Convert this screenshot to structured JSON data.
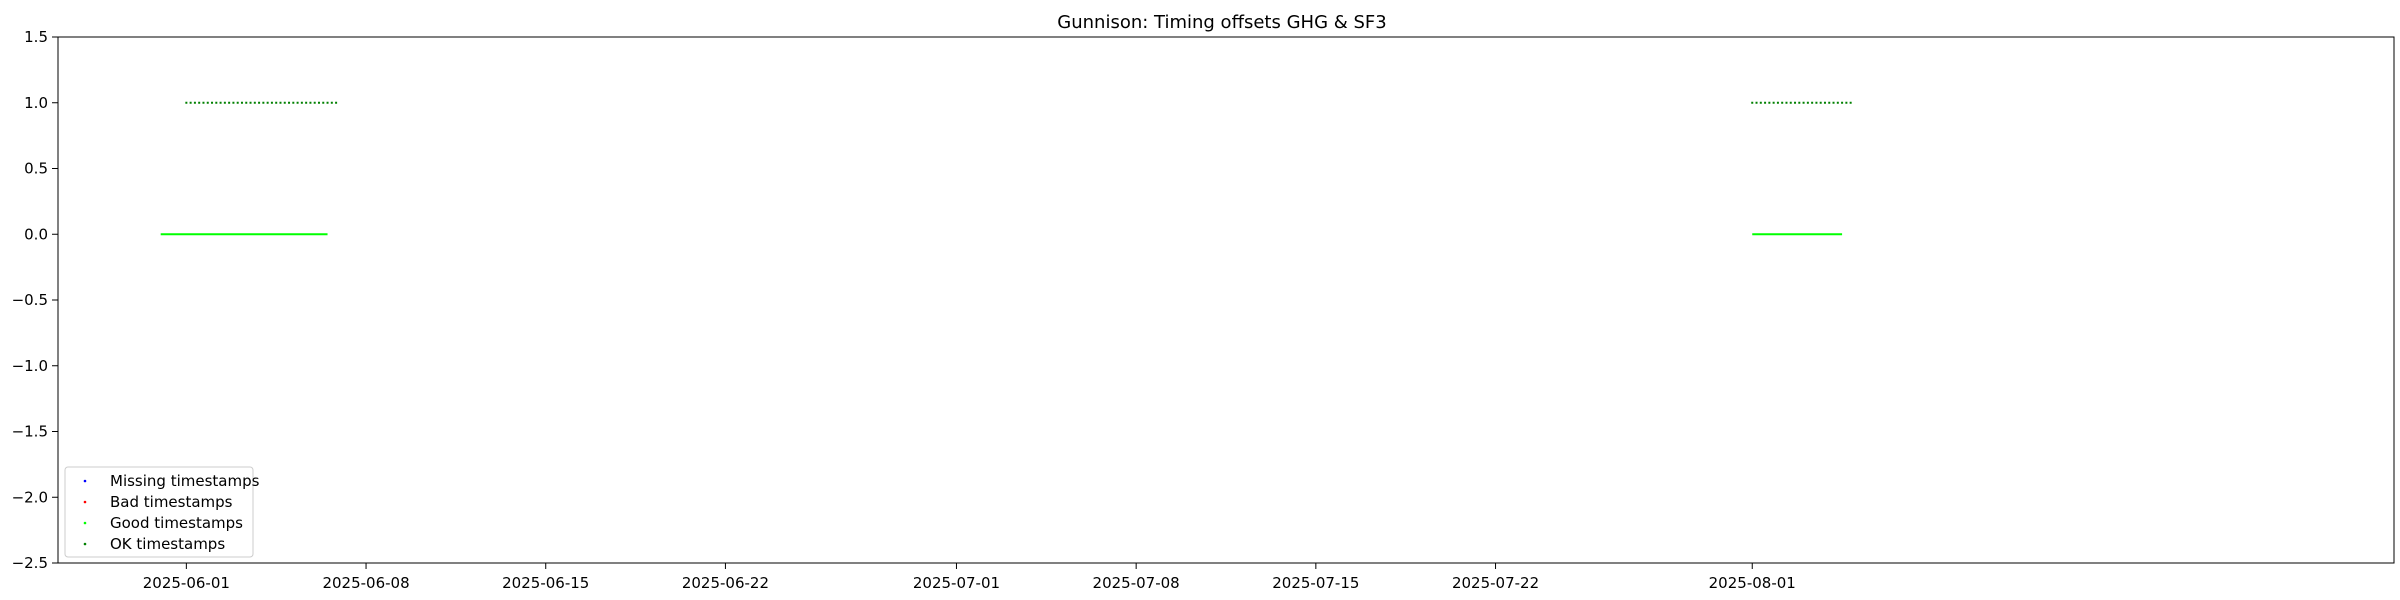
{
  "chart_data": {
    "type": "scatter",
    "title": "Gunnison: Timing offsets GHG & SF3",
    "xlabel": "",
    "ylabel": "",
    "ylim": [
      -2.5,
      1.5
    ],
    "xlim": [
      "2025-05-27",
      "2025-08-26"
    ],
    "yticks": [
      1.5,
      1.0,
      0.5,
      0.0,
      -0.5,
      -1.0,
      -1.5,
      -2.0,
      -2.5
    ],
    "ytick_labels": [
      "1.5",
      "1.0",
      "0.5",
      "0.0",
      "−0.5",
      "−1.0",
      "−1.5",
      "−2.0",
      "−2.5"
    ],
    "xticks": [
      "2025-06-01",
      "2025-06-08",
      "2025-06-15",
      "2025-06-22",
      "2025-07-01",
      "2025-07-08",
      "2025-07-15",
      "2025-07-22",
      "2025-08-01"
    ],
    "grid": false,
    "legend_position": "lower-left",
    "series": [
      {
        "name": "Missing timestamps",
        "color": "#0000ff",
        "points": []
      },
      {
        "name": "Bad timestamps",
        "color": "#ff0000",
        "points": []
      },
      {
        "name": "Good timestamps",
        "color": "#00ff00",
        "segments": [
          {
            "x_start": "2025-05-31",
            "x_end": "2025-06-06",
            "y": 0.0
          },
          {
            "x_start": "2025-08-01",
            "x_end": "2025-08-04",
            "y": 0.0
          }
        ]
      },
      {
        "name": "OK timestamps",
        "color": "#008000",
        "points": [
          {
            "x": "2025-06-01",
            "y": 1.0
          },
          {
            "x": "2025-06-02",
            "y": 1.0
          },
          {
            "x": "2025-06-03",
            "y": 1.0
          },
          {
            "x": "2025-06-04",
            "y": 1.0
          },
          {
            "x": "2025-06-05",
            "y": 1.0
          },
          {
            "x": "2025-06-06",
            "y": 1.0
          },
          {
            "x": "2025-08-01",
            "y": 1.0
          },
          {
            "x": "2025-08-02",
            "y": 1.0
          },
          {
            "x": "2025-08-03",
            "y": 1.0
          },
          {
            "x": "2025-08-04",
            "y": 1.0
          }
        ]
      }
    ]
  }
}
